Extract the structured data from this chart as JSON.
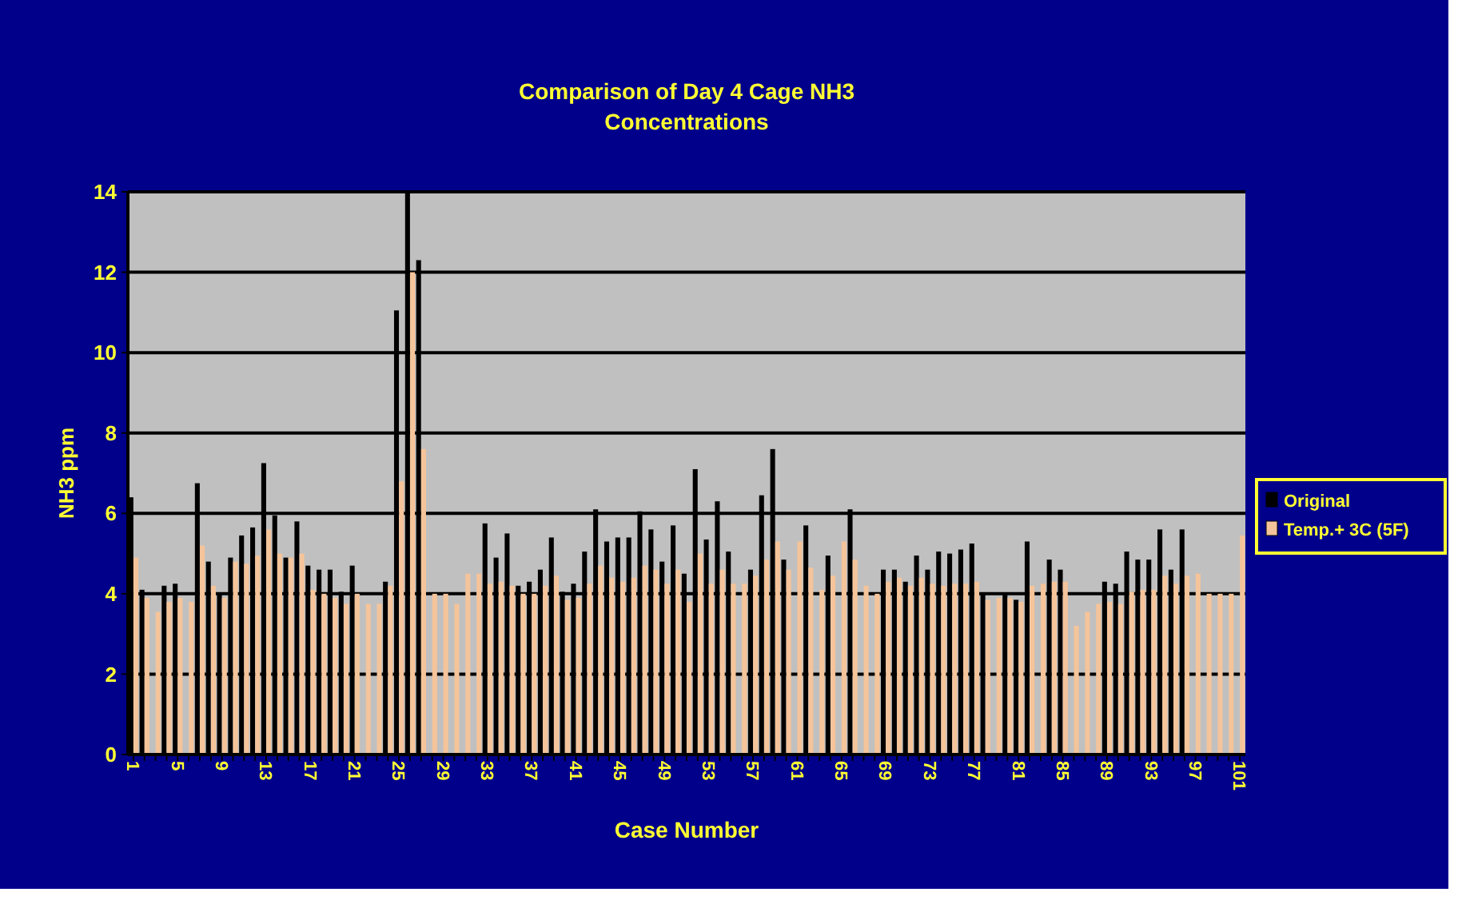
{
  "chart_data": {
    "type": "bar",
    "title": "Comparison  of Day 4 Cage NH3\nConcentrations",
    "xlabel": "Case Number",
    "ylabel": "NH3 ppm",
    "categories": [
      "1",
      null,
      null,
      null,
      "5",
      null,
      null,
      null,
      "9",
      null,
      null,
      null,
      "13",
      null,
      null,
      null,
      "17",
      null,
      null,
      null,
      "21",
      null,
      null,
      null,
      "25",
      null,
      null,
      null,
      "29",
      null,
      null,
      null,
      "33",
      null,
      null,
      null,
      "37",
      null,
      null,
      null,
      "41",
      null,
      null,
      null,
      "45",
      null,
      null,
      null,
      "49",
      null,
      null,
      null,
      "53",
      null,
      null,
      null,
      "57",
      null,
      null,
      null,
      "61",
      null,
      null,
      null,
      "65",
      null,
      null,
      null,
      "69",
      null,
      null,
      null,
      "73",
      null,
      null,
      null,
      "77",
      null,
      null,
      null,
      "81",
      null,
      null,
      null,
      "85",
      null,
      null,
      null,
      "89",
      null,
      null,
      null,
      "93",
      null,
      null,
      null,
      "97",
      null,
      null,
      null,
      "101"
    ],
    "series": [
      {
        "name": "Original",
        "color": "#000000",
        "values": [
          6.4,
          4.1,
          null,
          4.2,
          4.25,
          null,
          6.75,
          4.8,
          4.0,
          4.9,
          5.45,
          5.65,
          7.25,
          5.95,
          4.9,
          5.8,
          4.7,
          4.6,
          4.6,
          4.05,
          4.7,
          null,
          null,
          4.3,
          11.05,
          14,
          12.3,
          null,
          null,
          null,
          null,
          null,
          5.75,
          4.9,
          5.5,
          4.2,
          4.3,
          4.6,
          5.4,
          4.05,
          4.25,
          5.05,
          6.1,
          5.3,
          5.4,
          5.4,
          6.05,
          5.6,
          4.8,
          5.7,
          4.5,
          7.1,
          5.35,
          6.3,
          5.05,
          null,
          4.6,
          6.45,
          7.6,
          4.85,
          null,
          5.7,
          null,
          4.95,
          null,
          6.1,
          null,
          null,
          4.6,
          4.6,
          4.3,
          4.95,
          4.6,
          5.05,
          5.0,
          5.1,
          5.25,
          4.0,
          null,
          4.0,
          3.85,
          5.3,
          null,
          4.85,
          4.6,
          null,
          null,
          null,
          4.3,
          4.25,
          5.05,
          4.85,
          4.85,
          5.6,
          4.6,
          5.6,
          null,
          null,
          null,
          null,
          null
        ]
      },
      {
        "name": "Temp.+ 3C (5F)",
        "color": "#f5c49a",
        "values": [
          4.9,
          3.9,
          3.55,
          3.8,
          3.9,
          3.8,
          5.2,
          4.2,
          3.9,
          4.8,
          4.75,
          4.95,
          5.6,
          5.0,
          4.9,
          5.0,
          4.1,
          4.0,
          3.9,
          3.75,
          4.0,
          3.75,
          3.75,
          4.2,
          6.8,
          12.0,
          7.6,
          4.0,
          4.0,
          3.75,
          4.5,
          4.5,
          4.25,
          4.3,
          4.2,
          4.0,
          4.0,
          4.2,
          4.45,
          3.85,
          3.9,
          4.25,
          4.7,
          4.4,
          4.3,
          4.4,
          4.7,
          4.6,
          4.25,
          4.6,
          3.8,
          5.0,
          4.25,
          4.6,
          4.25,
          4.25,
          4.45,
          4.85,
          5.3,
          4.6,
          5.3,
          4.65,
          4.1,
          4.45,
          5.3,
          4.85,
          4.2,
          4.0,
          4.3,
          4.4,
          4.2,
          4.4,
          4.25,
          4.2,
          4.25,
          4.25,
          4.3,
          3.85,
          3.9,
          3.9,
          3.8,
          4.2,
          4.25,
          4.3,
          4.3,
          3.2,
          3.55,
          3.75,
          3.8,
          3.75,
          4.05,
          4.1,
          4.1,
          4.45,
          4.25,
          4.45,
          4.5,
          4.0,
          4.0,
          4.0,
          5.45
        ]
      }
    ],
    "ylim": [
      0,
      14
    ],
    "yticks": [
      0,
      2,
      4,
      6,
      8,
      10,
      12,
      14
    ],
    "grid": true,
    "legend": "right"
  }
}
